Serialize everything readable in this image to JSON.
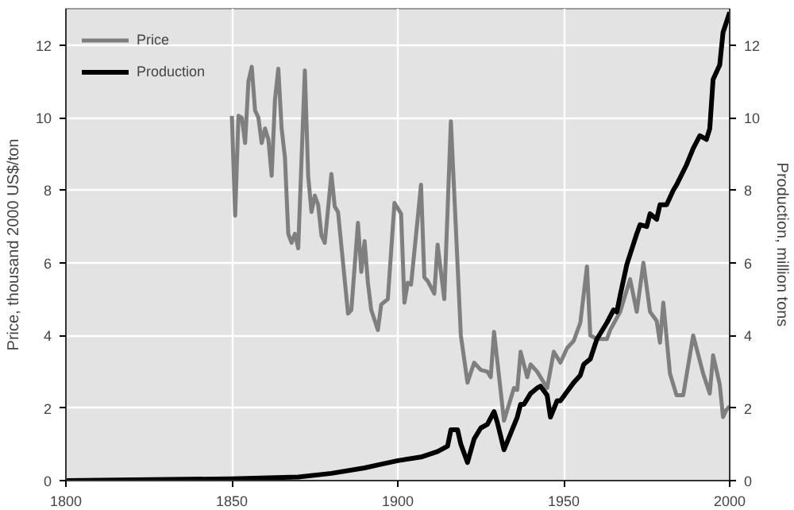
{
  "chart_data": {
    "type": "line",
    "xlabel": null,
    "ylabel": "Price, thousand 2000 US$/ton",
    "y2label": "Production, million tons",
    "xlim": [
      1800,
      2000
    ],
    "xticks": [
      1800,
      1850,
      1900,
      1950,
      2000
    ],
    "ylim": [
      0,
      13
    ],
    "yticks": [
      0,
      2,
      4,
      6,
      8,
      10,
      12
    ],
    "y2lim": [
      0,
      13
    ],
    "y2ticks": [
      0,
      2,
      4,
      6,
      8,
      10,
      12
    ],
    "grid": true,
    "legend": "top left",
    "line_style": "solid",
    "marker": "none",
    "series": [
      {
        "name": "Price",
        "color": "#7f7f7f",
        "x": [
          1850,
          1851,
          1852,
          1853,
          1854,
          1855,
          1856,
          1857,
          1858,
          1859,
          1860,
          1861,
          1862,
          1863,
          1864,
          1865,
          1866,
          1867,
          1868,
          1869,
          1870,
          1872,
          1873,
          1874,
          1875,
          1876,
          1877,
          1878,
          1880,
          1881,
          1882,
          1885,
          1886,
          1888,
          1889,
          1890,
          1891,
          1892,
          1894,
          1895,
          1897,
          1899,
          1901,
          1902,
          1903,
          1904,
          1907,
          1908,
          1909,
          1911,
          1912,
          1914,
          1916,
          1919,
          1921,
          1923,
          1925,
          1927,
          1928,
          1929,
          1932,
          1935,
          1936,
          1937,
          1939,
          1940,
          1942,
          1945,
          1947,
          1949,
          1951,
          1953,
          1955,
          1957,
          1958,
          1960,
          1963,
          1964,
          1967,
          1970,
          1972,
          1974,
          1976,
          1978,
          1979,
          1980,
          1982,
          1984,
          1986,
          1989,
          1992,
          1994,
          1995,
          1997,
          1998,
          1999,
          2000
        ],
        "values": [
          10.05,
          7.3,
          10.05,
          10.0,
          9.3,
          11.0,
          11.4,
          10.2,
          10.0,
          9.3,
          9.7,
          9.4,
          8.4,
          10.5,
          11.35,
          9.7,
          8.9,
          6.8,
          6.55,
          6.8,
          6.4,
          11.3,
          8.4,
          7.4,
          7.85,
          7.6,
          6.75,
          6.55,
          8.45,
          7.55,
          7.4,
          4.6,
          4.7,
          7.1,
          5.75,
          6.6,
          5.45,
          4.7,
          4.15,
          4.85,
          5.0,
          7.65,
          7.35,
          4.9,
          5.45,
          5.4,
          8.15,
          5.6,
          5.5,
          5.15,
          6.5,
          5.0,
          9.9,
          4.0,
          2.7,
          3.25,
          3.05,
          3.0,
          2.85,
          4.1,
          1.65,
          2.55,
          2.5,
          3.55,
          2.85,
          3.2,
          3.0,
          2.55,
          3.55,
          3.25,
          3.65,
          3.85,
          4.35,
          5.9,
          4.0,
          3.9,
          3.9,
          4.15,
          4.65,
          5.55,
          4.65,
          6.0,
          4.65,
          4.4,
          3.8,
          4.9,
          2.95,
          2.35,
          2.35,
          4.0,
          2.95,
          2.4,
          3.45,
          2.65,
          1.75,
          1.95,
          2.05
        ]
      },
      {
        "name": "Production",
        "color": "#000000",
        "axis": "y2",
        "x": [
          1800,
          1850,
          1870,
          1880,
          1890,
          1895,
          1900,
          1907,
          1912,
          1915,
          1916,
          1918,
          1919,
          1921,
          1923,
          1925,
          1927,
          1929,
          1930,
          1932,
          1934,
          1936,
          1937,
          1938,
          1940,
          1942,
          1943,
          1945,
          1946,
          1948,
          1949,
          1951,
          1953,
          1955,
          1956,
          1958,
          1960,
          1963,
          1965,
          1966,
          1967,
          1969,
          1972,
          1973,
          1975,
          1976,
          1978,
          1979,
          1981,
          1983,
          1984,
          1987,
          1989,
          1991,
          1993,
          1994,
          1995,
          1997,
          1998,
          2000
        ],
        "values": [
          0,
          0.05,
          0.1,
          0.2,
          0.35,
          0.45,
          0.55,
          0.65,
          0.8,
          0.95,
          1.4,
          1.4,
          1.0,
          0.5,
          1.15,
          1.45,
          1.55,
          1.9,
          1.6,
          0.85,
          1.3,
          1.75,
          2.1,
          2.1,
          2.4,
          2.55,
          2.6,
          2.35,
          1.75,
          2.2,
          2.2,
          2.45,
          2.7,
          2.9,
          3.2,
          3.35,
          3.9,
          4.35,
          4.7,
          4.65,
          5.1,
          5.95,
          6.8,
          7.05,
          7.0,
          7.35,
          7.2,
          7.6,
          7.6,
          8.0,
          8.15,
          8.7,
          9.15,
          9.5,
          9.4,
          9.7,
          11.05,
          11.45,
          12.35,
          12.9
        ]
      }
    ]
  }
}
